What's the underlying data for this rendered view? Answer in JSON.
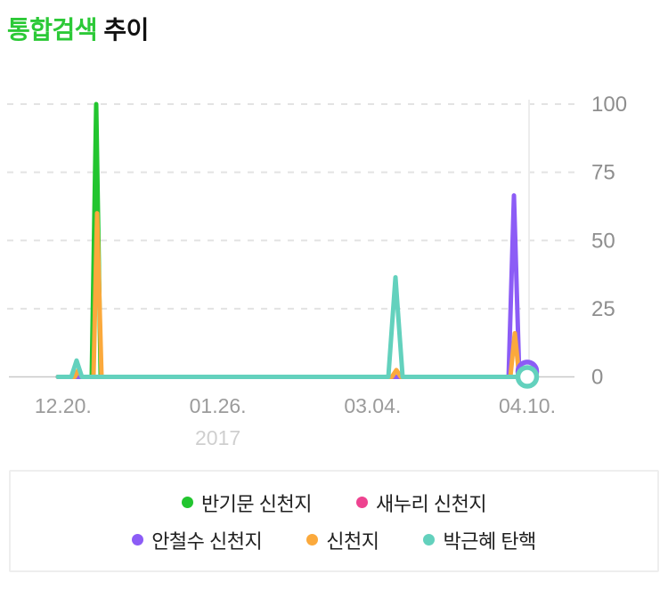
{
  "title": {
    "highlight": "통합검색",
    "rest": " 추이"
  },
  "chart_data": {
    "type": "line",
    "title": "통합검색 추이",
    "ylim": [
      0,
      100
    ],
    "y_ticks": [
      0,
      25,
      50,
      75,
      100
    ],
    "grid": "dashed-horizontal",
    "legend_position": "bottom-box",
    "x_axis_year_label": "2017",
    "x_ticks": [
      {
        "label": "12.20.",
        "frac": 0.011
      },
      {
        "label": "01.26.",
        "frac": 0.3408
      },
      {
        "label": "03.04.",
        "frac": 0.6704
      },
      {
        "label": "04.10.",
        "frac": 1.0
      }
    ],
    "series": [
      {
        "name": "반기문 신천지",
        "color": "#22c52f",
        "points": [
          [
            0,
            0
          ],
          [
            0.0721,
            0
          ],
          [
            0.0816,
            100
          ],
          [
            0.0911,
            0
          ],
          [
            1,
            0
          ]
        ],
        "peaks_note": "spike to 100 near 12.28"
      },
      {
        "name": "새누리 신천지",
        "color": "#ee4390",
        "points": [
          [
            0,
            0
          ],
          [
            1,
            0
          ]
        ],
        "peaks_note": "flat at 0, hidden under other lines"
      },
      {
        "name": "안철수 신천지",
        "color": "#8c5cf6",
        "points": [
          [
            0,
            0
          ],
          [
            0.9602,
            0
          ],
          [
            0.9716,
            66.5
          ],
          [
            0.9829,
            1
          ],
          [
            1,
            2
          ]
        ],
        "end_marker": true,
        "peaks_note": "spike to ~66 near 04.07"
      },
      {
        "name": "신천지",
        "color": "#fba93c",
        "points": [
          [
            0,
            0
          ],
          [
            0.0361,
            0
          ],
          [
            0.0437,
            2.5
          ],
          [
            0.0512,
            0
          ],
          [
            0.0759,
            0
          ],
          [
            0.0835,
            60
          ],
          [
            0.093,
            0
          ],
          [
            0.7116,
            0
          ],
          [
            0.7211,
            2.5
          ],
          [
            0.7306,
            0
          ],
          [
            0.964,
            0
          ],
          [
            0.9734,
            16
          ],
          [
            0.9829,
            0
          ],
          [
            1,
            0
          ]
        ],
        "peaks_note": "spike to ~60 near 12.28, ~16 near 04.08"
      },
      {
        "name": "박근혜 탄핵",
        "color": "#63d1bd",
        "points": [
          [
            0,
            0
          ],
          [
            0.0285,
            0
          ],
          [
            0.0398,
            6
          ],
          [
            0.0512,
            0
          ],
          [
            0.704,
            0
          ],
          [
            0.7192,
            36.5
          ],
          [
            0.7344,
            0
          ],
          [
            1,
            0
          ]
        ],
        "end_marker": true,
        "peaks_note": "spike to ~36 near 03.10"
      }
    ]
  },
  "legend": {
    "rows": [
      [
        0,
        1
      ],
      [
        2,
        3,
        4
      ]
    ]
  },
  "colors": {
    "title_green": "#2cc937",
    "grid_dashed": "#e3e3e3",
    "axis_zero_line": "#c9c9c9",
    "vertical_line": "#ececec",
    "y_tick_text": "#8e8e8e",
    "x_tick_text": "#9b9b9b",
    "year_text": "#cfcfcf"
  }
}
